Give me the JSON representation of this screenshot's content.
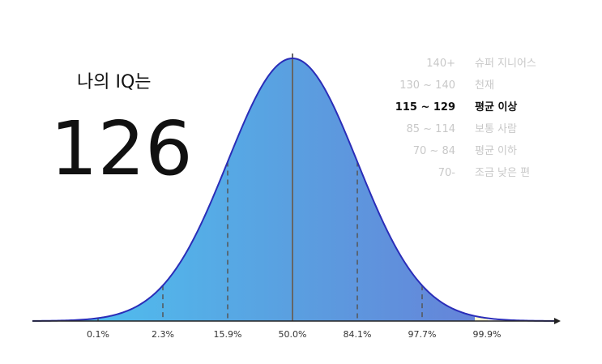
{
  "title": "나의 IQ는",
  "score": "126",
  "ranges": [
    {
      "range": "140+",
      "label": "슈퍼 지니어스"
    },
    {
      "range": "130 ~ 140",
      "label": "천재"
    },
    {
      "range": "115 ~ 129",
      "label": "평균 이상"
    },
    {
      "range": "85 ~ 114",
      "label": "보통 사람"
    },
    {
      "range": "70 ~ 84",
      "label": "평균 이하"
    },
    {
      "range": "70-",
      "label": "조금 낮은 편"
    }
  ],
  "percentiles": [
    "0.1%",
    "2.3%",
    "15.9%",
    "50.0%",
    "84.1%",
    "97.7%",
    "99.9%"
  ]
}
